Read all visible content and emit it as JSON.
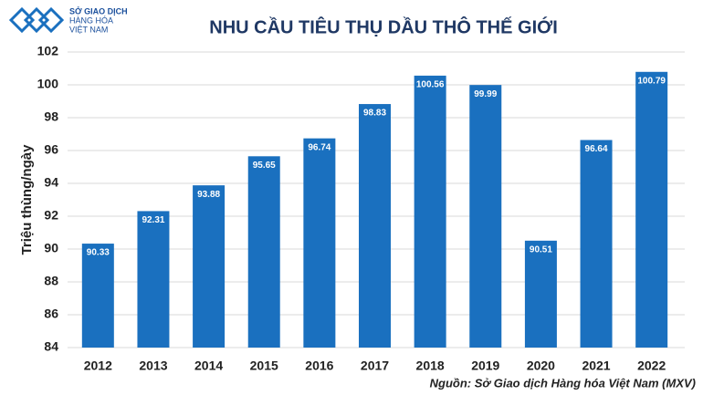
{
  "logo": [
    "SỞ GIAO DỊCH",
    "HÀNG HÓA",
    "VIỆT NAM"
  ],
  "chart_data": {
    "type": "bar",
    "title": "NHU CẦU TIÊU THỤ DẦU THÔ THẾ GIỚI",
    "y_label": "Triệu thùng/ngày",
    "source": "Nguồn: Sở Giao dịch Hàng hóa Việt Nam (MXV)",
    "categories": [
      "2012",
      "2013",
      "2014",
      "2015",
      "2016",
      "2017",
      "2018",
      "2019",
      "2020",
      "2021",
      "2022"
    ],
    "values": [
      90.33,
      92.31,
      93.88,
      95.65,
      96.74,
      98.83,
      100.56,
      99.99,
      90.51,
      96.64,
      100.79
    ],
    "color": "#1a70bf",
    "ylim": [
      84,
      102
    ],
    "yticks": [
      84,
      86,
      88,
      90,
      92,
      94,
      96,
      98,
      100,
      102
    ],
    "grid": true
  }
}
